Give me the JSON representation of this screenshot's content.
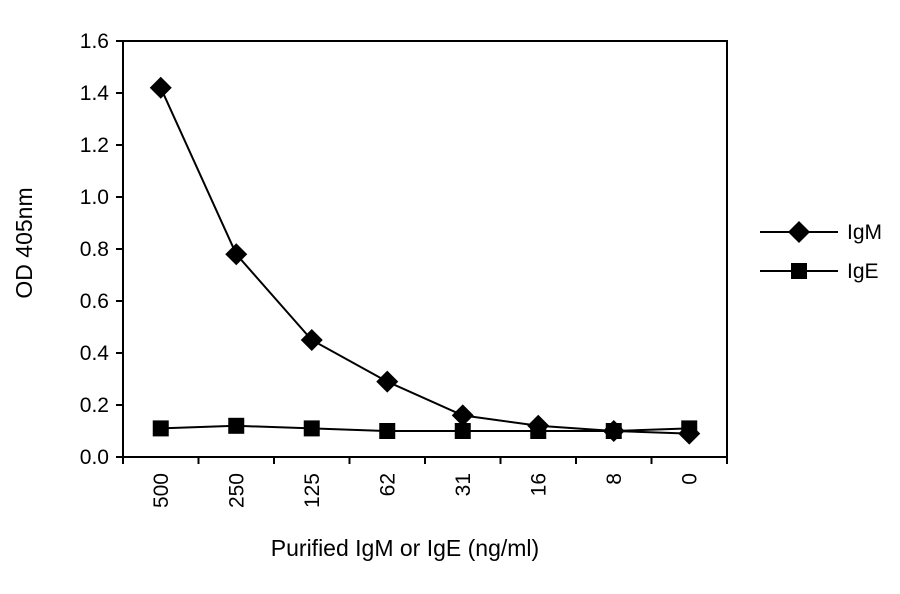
{
  "chart_data": {
    "type": "line",
    "title": "",
    "xlabel": "Purified IgM or IgE (ng/ml)",
    "ylabel": "OD 405nm",
    "categories": [
      "500",
      "250",
      "125",
      "62",
      "31",
      "16",
      "8",
      "0"
    ],
    "ylim": [
      0,
      1.6
    ],
    "yticks": [
      "0.0",
      "0.2",
      "0.4",
      "0.6",
      "0.8",
      "1.0",
      "1.2",
      "1.4",
      "1.6"
    ],
    "grid": false,
    "legend_position": "right",
    "series": [
      {
        "name": "IgM",
        "marker": "diamond",
        "color": "#000000",
        "values": [
          1.42,
          0.78,
          0.45,
          0.29,
          0.16,
          0.12,
          0.1,
          0.09
        ]
      },
      {
        "name": "IgE",
        "marker": "square",
        "color": "#000000",
        "values": [
          0.11,
          0.12,
          0.11,
          0.1,
          0.1,
          0.1,
          0.1,
          0.11
        ]
      }
    ]
  }
}
